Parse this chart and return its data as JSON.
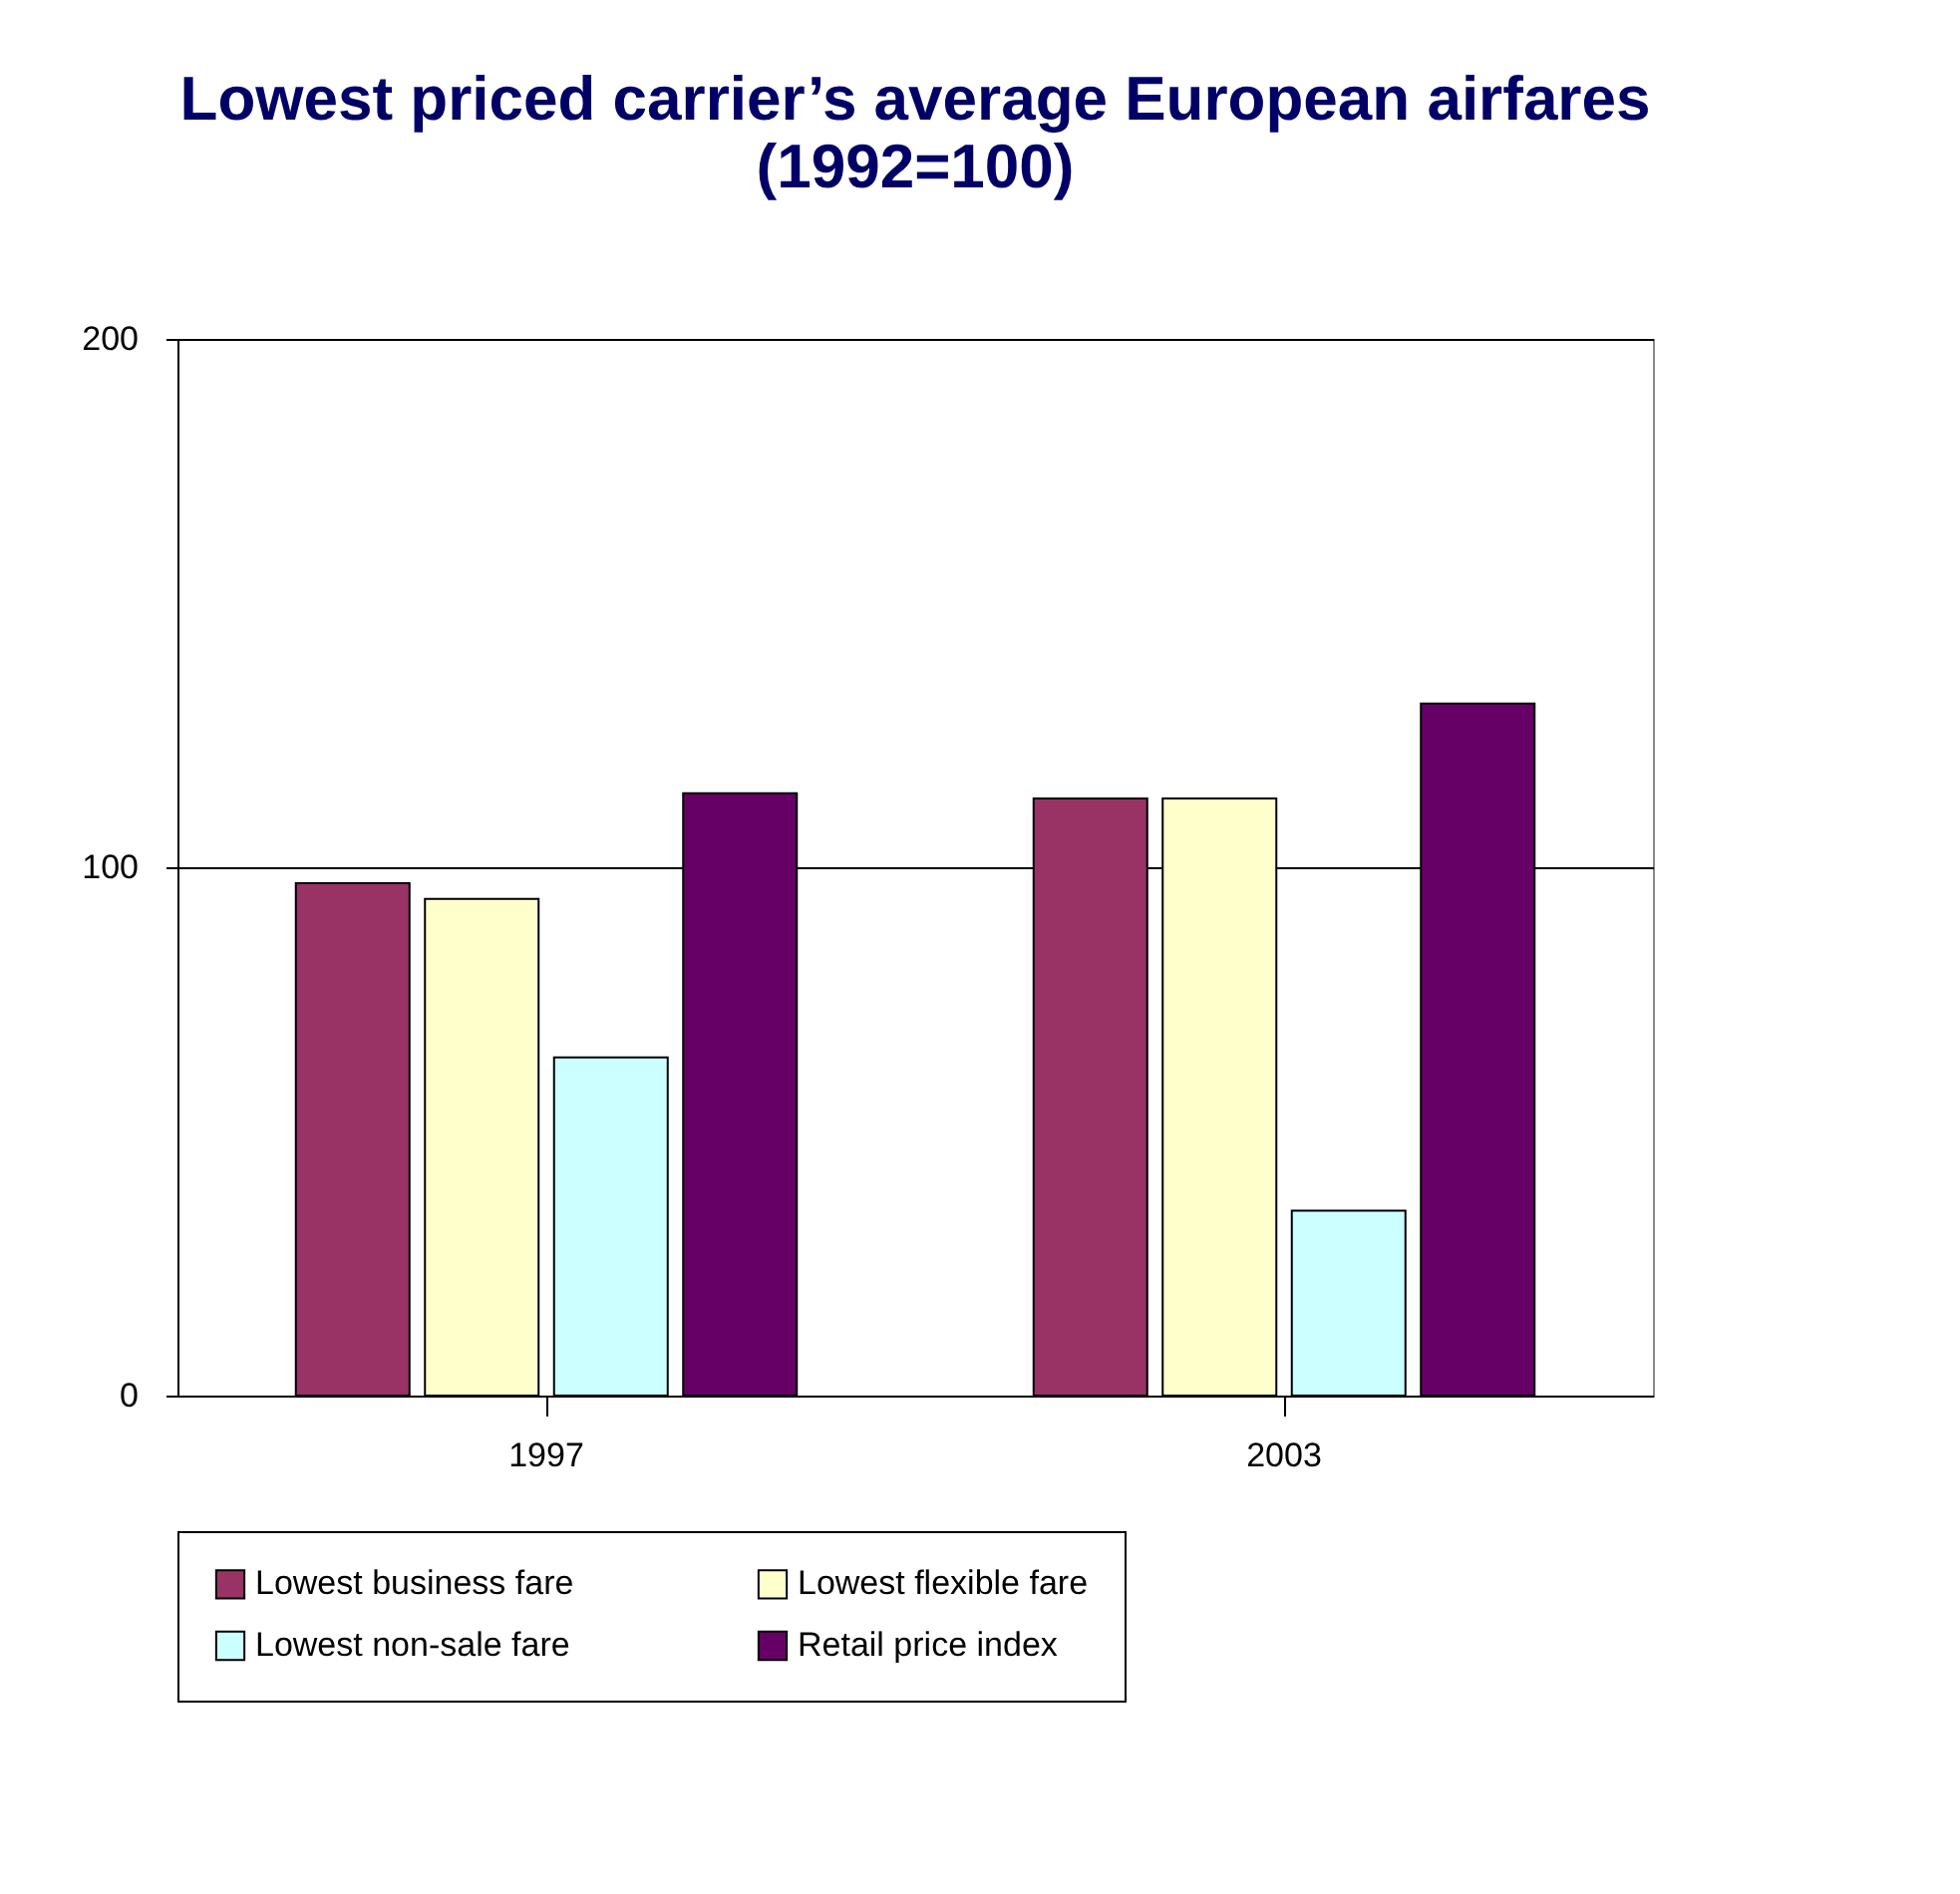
{
  "chart_data": {
    "type": "bar",
    "title": "Lowest priced carrier’s average European airfares",
    "subtitle": "(1992=100)",
    "categories": [
      "1997",
      "2003"
    ],
    "series": [
      {
        "name": "Lowest business fare",
        "color": "#993366",
        "values": [
          97,
          113
        ]
      },
      {
        "name": "Lowest flexible fare",
        "color": "#ffffcc",
        "values": [
          94,
          113
        ]
      },
      {
        "name": "Lowest non-sale fare",
        "color": "#ccffff",
        "values": [
          64,
          35
        ]
      },
      {
        "name": "Retail price index",
        "color": "#660066",
        "values": [
          114,
          131
        ]
      }
    ],
    "ylim": [
      0,
      200
    ],
    "yticks": [
      0,
      100,
      200
    ],
    "grid": "y",
    "legend": "bottom"
  }
}
